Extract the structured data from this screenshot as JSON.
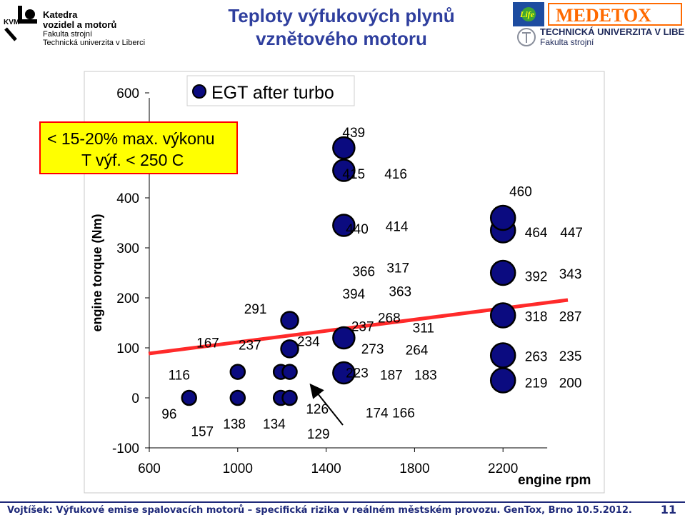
{
  "header": {
    "kvm_logo_text": "KVM",
    "dept_line1": "Katedra",
    "dept_line2": "vozidel a motorů",
    "dept_line3": "Fakulta strojní",
    "dept_line4": "Technická univerzita v Liberci",
    "title_line1": "Teploty výfukových plynů",
    "title_line2": "vznětového motoru",
    "life_logo_text": "Life",
    "medetox_logo_text": "MEDETOX",
    "tul_line1": "TECHNICKÁ UNIVERZITA V LIBERCI",
    "tul_line2": "Fakulta strojní"
  },
  "footer": {
    "text": "Vojtíšek: Výfukové emise spalovacích motorů – specifická rizika v reálném městském provozu. GenTox, Brno 10.5.2012.",
    "page": "11"
  },
  "chart_data": {
    "type": "scatter",
    "legend": "EGT after turbo",
    "legend_position": "top-left",
    "xlabel": "engine rpm",
    "ylabel": "engine torque (Nm)",
    "xlim": [
      600,
      2400
    ],
    "ylim": [
      -100,
      600
    ],
    "xticks": [
      600,
      1000,
      1400,
      1800,
      2200
    ],
    "yticks": [
      -100,
      0,
      100,
      200,
      300,
      400,
      600
    ],
    "grid": false,
    "colors": {
      "marker": "#0b0b80",
      "marker_edge": "#000000",
      "trend": "#ff2a2a",
      "note_bg": "#ffff00",
      "note_border": "#ff0000"
    },
    "points": [
      {
        "rpm": 780,
        "torque": 0
      },
      {
        "rpm": 1000,
        "torque": 0
      },
      {
        "rpm": 1000,
        "torque": 52
      },
      {
        "rpm": 1195,
        "torque": 0
      },
      {
        "rpm": 1195,
        "torque": 52
      },
      {
        "rpm": 1235,
        "torque": 0
      },
      {
        "rpm": 1235,
        "torque": 52
      },
      {
        "rpm": 1235,
        "torque": 98
      },
      {
        "rpm": 1235,
        "torque": 155
      },
      {
        "rpm": 1480,
        "torque": 50
      },
      {
        "rpm": 1480,
        "torque": 120
      },
      {
        "rpm": 1480,
        "torque": 345
      },
      {
        "rpm": 1480,
        "torque": 455
      },
      {
        "rpm": 1480,
        "torque": 500
      },
      {
        "rpm": 2200,
        "torque": 35
      },
      {
        "rpm": 2200,
        "torque": 85
      },
      {
        "rpm": 2200,
        "torque": 165
      },
      {
        "rpm": 2200,
        "torque": 250
      },
      {
        "rpm": 2200,
        "torque": 335
      },
      {
        "rpm": 2200,
        "torque": 360
      }
    ],
    "labels": [
      {
        "text": "439",
        "rpm": 1525,
        "torque": 533
      },
      {
        "text": "415",
        "rpm": 1525,
        "torque": 450
      },
      {
        "text": "416",
        "rpm": 1715,
        "torque": 450
      },
      {
        "text": "460",
        "rpm": 2280,
        "torque": 415
      },
      {
        "text": "440",
        "rpm": 1540,
        "torque": 340
      },
      {
        "text": "414",
        "rpm": 1720,
        "torque": 345
      },
      {
        "text": "464",
        "rpm": 2350,
        "torque": 333
      },
      {
        "text": "447",
        "rpm": 2510,
        "torque": 333
      },
      {
        "text": "366",
        "rpm": 1570,
        "torque": 255
      },
      {
        "text": "317",
        "rpm": 1725,
        "torque": 262
      },
      {
        "text": "392",
        "rpm": 2350,
        "torque": 245
      },
      {
        "text": "343",
        "rpm": 2505,
        "torque": 250
      },
      {
        "text": "394",
        "rpm": 1525,
        "torque": 210
      },
      {
        "text": "363",
        "rpm": 1735,
        "torque": 215
      },
      {
        "text": "291",
        "rpm": 1080,
        "torque": 180
      },
      {
        "text": "268",
        "rpm": 1685,
        "torque": 162
      },
      {
        "text": "237",
        "rpm": 1565,
        "torque": 145
      },
      {
        "text": "311",
        "rpm": 1840,
        "torque": 142
      },
      {
        "text": "318",
        "rpm": 2350,
        "torque": 165
      },
      {
        "text": "287",
        "rpm": 2505,
        "torque": 165
      },
      {
        "text": "167",
        "rpm": 865,
        "torque": 112
      },
      {
        "text": "237",
        "rpm": 1055,
        "torque": 108
      },
      {
        "text": "234",
        "rpm": 1320,
        "torque": 115
      },
      {
        "text": "273",
        "rpm": 1610,
        "torque": 100
      },
      {
        "text": "264",
        "rpm": 1810,
        "torque": 98
      },
      {
        "text": "263",
        "rpm": 2350,
        "torque": 85
      },
      {
        "text": "235",
        "rpm": 2505,
        "torque": 86
      },
      {
        "text": "116",
        "rpm": 735,
        "torque": 48
      },
      {
        "text": "223",
        "rpm": 1540,
        "torque": 52
      },
      {
        "text": "187",
        "rpm": 1695,
        "torque": 48
      },
      {
        "text": "183",
        "rpm": 1850,
        "torque": 48
      },
      {
        "text": "219",
        "rpm": 2350,
        "torque": 32
      },
      {
        "text": "200",
        "rpm": 2505,
        "torque": 32
      },
      {
        "text": "96",
        "rpm": 690,
        "torque": -30
      },
      {
        "text": "126",
        "rpm": 1360,
        "torque": -20
      },
      {
        "text": "174",
        "rpm": 1630,
        "torque": -28
      },
      {
        "text": "166",
        "rpm": 1750,
        "torque": -28
      },
      {
        "text": "138",
        "rpm": 985,
        "torque": -50
      },
      {
        "text": "134",
        "rpm": 1165,
        "torque": -50
      },
      {
        "text": "157",
        "rpm": 840,
        "torque": -65
      },
      {
        "text": "129",
        "rpm": 1365,
        "torque": -70
      }
    ],
    "annotations": [
      {
        "text_line1": "< 15-20% max. výkonu",
        "text_line2": "T výf. < 250 C"
      }
    ]
  }
}
